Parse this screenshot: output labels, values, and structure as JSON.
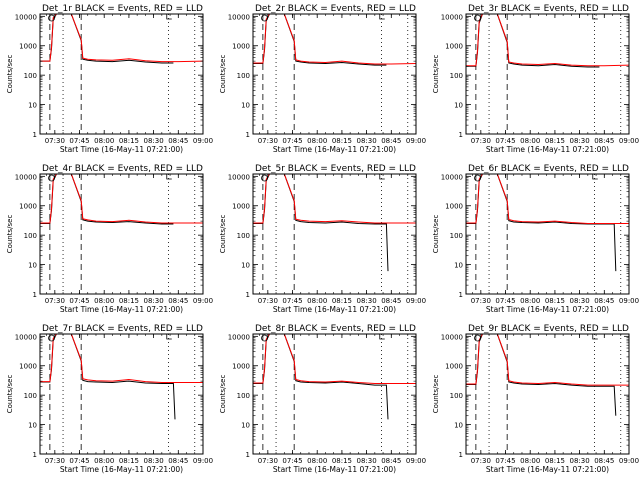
{
  "figure": {
    "colors": {
      "events": "#000000",
      "lld": "#ff0000",
      "axis": "#000000",
      "background": "#ffffff"
    },
    "ylabel": "Counts/sec",
    "xlabel": "Start Time (16-May-11 07:21:00)",
    "xticks": [
      "07:30",
      "07:45",
      "08:00",
      "08:15",
      "08:30",
      "08:45",
      "09:00"
    ],
    "yticks": [
      "1",
      "10",
      "100",
      "1000",
      "10000"
    ]
  },
  "chart_data": [
    {
      "type": "line",
      "title": "Det_1r  BLACK = Events, RED = LLD",
      "xlabel": "Start Time (16-May-11 07:21:00)",
      "ylabel": "Counts/sec",
      "xlim": [
        "07:21",
        "09:00"
      ],
      "ylim": [
        1,
        12000
      ],
      "yscale": "log",
      "ytick_labels": [
        "1",
        "10",
        "100",
        "1000",
        "10000"
      ],
      "xtick_labels": [
        "07:30",
        "07:45",
        "08:00",
        "08:15",
        "08:30",
        "08:45",
        "09:00"
      ],
      "series": [
        {
          "name": "Events",
          "color": "#000000",
          "x": [
            "07:21",
            "07:27",
            "07:28",
            "07:29",
            "07:31",
            "07:38",
            "07:40",
            "07:46",
            "07:47",
            "07:50",
            "07:55",
            "08:05",
            "08:15",
            "08:25",
            "08:35",
            "08:42"
          ],
          "values": [
            300,
            300,
            800,
            8000,
            12000,
            12000,
            12000,
            1500,
            350,
            320,
            300,
            290,
            320,
            280,
            260,
            260
          ]
        },
        {
          "name": "LLD",
          "color": "#ff0000",
          "x": [
            "07:21",
            "07:27",
            "07:28",
            "07:29",
            "07:31",
            "07:38",
            "07:40",
            "07:46",
            "07:47",
            "07:50",
            "07:55",
            "08:05",
            "08:15",
            "08:25",
            "08:35",
            "08:45",
            "09:00"
          ],
          "values": [
            300,
            300,
            900,
            9000,
            12000,
            12000,
            12000,
            1600,
            380,
            350,
            330,
            320,
            360,
            310,
            290,
            290,
            300
          ]
        }
      ]
    },
    {
      "type": "line",
      "title": "Det_2r  BLACK = Events, RED = LLD",
      "xlabel": "Start Time (16-May-11 07:21:00)",
      "ylabel": "Counts/sec",
      "xlim": [
        "07:21",
        "09:00"
      ],
      "ylim": [
        1,
        12000
      ],
      "yscale": "log",
      "ytick_labels": [
        "1",
        "10",
        "100",
        "1000",
        "10000"
      ],
      "xtick_labels": [
        "07:30",
        "07:45",
        "08:00",
        "08:15",
        "08:30",
        "08:45",
        "09:00"
      ],
      "series": [
        {
          "name": "Events",
          "color": "#000000",
          "x": [
            "07:21",
            "07:27",
            "07:28",
            "07:29",
            "07:31",
            "07:38",
            "07:40",
            "07:46",
            "07:47",
            "07:50",
            "07:55",
            "08:05",
            "08:15",
            "08:25",
            "08:35",
            "08:42"
          ],
          "values": [
            250,
            250,
            700,
            7000,
            12000,
            12000,
            12000,
            1400,
            300,
            280,
            260,
            250,
            270,
            240,
            220,
            220
          ]
        },
        {
          "name": "LLD",
          "color": "#ff0000",
          "x": [
            "07:21",
            "07:27",
            "07:28",
            "07:29",
            "07:31",
            "07:38",
            "07:40",
            "07:46",
            "07:47",
            "07:50",
            "07:55",
            "08:05",
            "08:15",
            "08:25",
            "08:35",
            "08:45",
            "09:00"
          ],
          "values": [
            260,
            260,
            800,
            8000,
            12000,
            12000,
            12000,
            1500,
            330,
            300,
            280,
            270,
            300,
            260,
            240,
            240,
            250
          ]
        }
      ]
    },
    {
      "type": "line",
      "title": "Det_3r  BLACK = Events, RED = LLD",
      "xlabel": "Start Time (16-May-11 07:21:00)",
      "ylabel": "Counts/sec",
      "xlim": [
        "07:21",
        "09:00"
      ],
      "ylim": [
        1,
        12000
      ],
      "yscale": "log",
      "ytick_labels": [
        "1",
        "10",
        "100",
        "1000",
        "10000"
      ],
      "xtick_labels": [
        "07:30",
        "07:45",
        "08:00",
        "08:15",
        "08:30",
        "08:45",
        "09:00"
      ],
      "series": [
        {
          "name": "Events",
          "color": "#000000",
          "x": [
            "07:21",
            "07:27",
            "07:28",
            "07:29",
            "07:31",
            "07:38",
            "07:40",
            "07:46",
            "07:47",
            "07:50",
            "07:55",
            "08:05",
            "08:15",
            "08:25",
            "08:35",
            "08:42"
          ],
          "values": [
            200,
            200,
            600,
            6000,
            12000,
            12000,
            12000,
            1300,
            260,
            240,
            220,
            210,
            230,
            200,
            190,
            190
          ]
        },
        {
          "name": "LLD",
          "color": "#ff0000",
          "x": [
            "07:21",
            "07:27",
            "07:28",
            "07:29",
            "07:31",
            "07:38",
            "07:40",
            "07:46",
            "07:47",
            "07:50",
            "07:55",
            "08:05",
            "08:15",
            "08:25",
            "08:35",
            "08:45",
            "09:00"
          ],
          "values": [
            210,
            210,
            700,
            7000,
            12000,
            12000,
            12000,
            1400,
            280,
            260,
            240,
            230,
            250,
            220,
            210,
            210,
            220
          ]
        }
      ]
    },
    {
      "type": "line",
      "title": "Det_4r  BLACK = Events, RED = LLD",
      "xlabel": "Start Time (16-May-11 07:21:00)",
      "ylabel": "Counts/sec",
      "xlim": [
        "07:21",
        "09:00"
      ],
      "ylim": [
        1,
        12000
      ],
      "yscale": "log",
      "ytick_labels": [
        "1",
        "10",
        "100",
        "1000",
        "10000"
      ],
      "xtick_labels": [
        "07:30",
        "07:45",
        "08:00",
        "08:15",
        "08:30",
        "08:45",
        "09:00"
      ],
      "series": [
        {
          "name": "Events",
          "color": "#000000",
          "x": [
            "07:21",
            "07:27",
            "07:28",
            "07:29",
            "07:31",
            "07:38",
            "07:40",
            "07:46",
            "07:47",
            "07:50",
            "07:55",
            "08:05",
            "08:15",
            "08:25",
            "08:35",
            "08:42"
          ],
          "values": [
            250,
            250,
            700,
            7000,
            12000,
            12000,
            12000,
            1400,
            330,
            300,
            280,
            270,
            290,
            260,
            240,
            240
          ]
        },
        {
          "name": "LLD",
          "color": "#ff0000",
          "x": [
            "07:21",
            "07:27",
            "07:28",
            "07:29",
            "07:31",
            "07:38",
            "07:40",
            "07:46",
            "07:47",
            "07:50",
            "07:55",
            "08:05",
            "08:15",
            "08:25",
            "08:35",
            "08:45",
            "09:00"
          ],
          "values": [
            260,
            260,
            800,
            8000,
            12000,
            12000,
            12000,
            1500,
            360,
            330,
            300,
            290,
            320,
            280,
            260,
            260,
            260
          ]
        }
      ]
    },
    {
      "type": "line",
      "title": "Det_5r  BLACK = Events, RED = LLD",
      "xlabel": "Start Time (16-May-11 07:21:00)",
      "ylabel": "Counts/sec",
      "xlim": [
        "07:21",
        "09:00"
      ],
      "ylim": [
        1,
        12000
      ],
      "yscale": "log",
      "ytick_labels": [
        "1",
        "10",
        "100",
        "1000",
        "10000"
      ],
      "xtick_labels": [
        "07:30",
        "07:45",
        "08:00",
        "08:15",
        "08:30",
        "08:45",
        "09:00"
      ],
      "series": [
        {
          "name": "Events",
          "color": "#000000",
          "x": [
            "07:21",
            "07:27",
            "07:28",
            "07:29",
            "07:31",
            "07:38",
            "07:40",
            "07:46",
            "07:47",
            "07:50",
            "07:55",
            "08:05",
            "08:15",
            "08:25",
            "08:35",
            "08:42",
            "08:43"
          ],
          "values": [
            250,
            250,
            700,
            7000,
            12000,
            12000,
            12000,
            1400,
            320,
            290,
            270,
            260,
            280,
            250,
            240,
            240,
            6
          ]
        },
        {
          "name": "LLD",
          "color": "#ff0000",
          "x": [
            "07:21",
            "07:27",
            "07:28",
            "07:29",
            "07:31",
            "07:38",
            "07:40",
            "07:46",
            "07:47",
            "07:50",
            "07:55",
            "08:05",
            "08:15",
            "08:25",
            "08:35",
            "08:45",
            "09:00"
          ],
          "values": [
            260,
            260,
            800,
            8000,
            12000,
            12000,
            12000,
            1500,
            350,
            320,
            300,
            290,
            310,
            280,
            260,
            260,
            260
          ]
        }
      ]
    },
    {
      "type": "line",
      "title": "Det_6r  BLACK = Events, RED = LLD",
      "xlabel": "Start Time (16-May-11 07:21:00)",
      "ylabel": "Counts/sec",
      "xlim": [
        "07:21",
        "09:00"
      ],
      "ylim": [
        1,
        12000
      ],
      "yscale": "log",
      "ytick_labels": [
        "1",
        "10",
        "100",
        "1000",
        "10000"
      ],
      "xtick_labels": [
        "07:30",
        "07:45",
        "08:00",
        "08:15",
        "08:30",
        "08:45",
        "09:00"
      ],
      "series": [
        {
          "name": "Events",
          "color": "#000000",
          "x": [
            "07:21",
            "07:27",
            "07:28",
            "07:29",
            "07:31",
            "07:38",
            "07:40",
            "07:46",
            "07:47",
            "07:50",
            "07:55",
            "08:05",
            "08:15",
            "08:25",
            "08:35",
            "08:51",
            "08:52"
          ],
          "values": [
            250,
            250,
            700,
            7000,
            12000,
            12000,
            12000,
            1400,
            310,
            280,
            270,
            260,
            280,
            250,
            240,
            240,
            6
          ]
        },
        {
          "name": "LLD",
          "color": "#ff0000",
          "x": [
            "07:21",
            "07:27",
            "07:28",
            "07:29",
            "07:31",
            "07:38",
            "07:40",
            "07:46",
            "07:47",
            "07:50",
            "07:55",
            "08:05",
            "08:15",
            "08:25",
            "08:35",
            "08:45",
            "09:00"
          ],
          "values": [
            260,
            260,
            800,
            8000,
            12000,
            12000,
            12000,
            1500,
            340,
            310,
            290,
            280,
            300,
            270,
            250,
            250,
            250
          ]
        }
      ]
    },
    {
      "type": "line",
      "title": "Det_7r  BLACK = Events, RED = LLD",
      "xlabel": "Start Time (16-May-11 07:21:00)",
      "ylabel": "Counts/sec",
      "xlim": [
        "07:21",
        "09:00"
      ],
      "ylim": [
        1,
        12000
      ],
      "yscale": "log",
      "ytick_labels": [
        "1",
        "10",
        "100",
        "1000",
        "10000"
      ],
      "xtick_labels": [
        "07:30",
        "07:45",
        "08:00",
        "08:15",
        "08:30",
        "08:45",
        "09:00"
      ],
      "series": [
        {
          "name": "Events",
          "color": "#000000",
          "x": [
            "07:21",
            "07:27",
            "07:28",
            "07:29",
            "07:31",
            "07:38",
            "07:40",
            "07:46",
            "07:47",
            "07:50",
            "07:55",
            "08:05",
            "08:15",
            "08:25",
            "08:35",
            "08:42",
            "08:43"
          ],
          "values": [
            280,
            280,
            750,
            7500,
            12000,
            12000,
            12000,
            1450,
            320,
            290,
            280,
            270,
            300,
            260,
            250,
            250,
            15
          ]
        },
        {
          "name": "LLD",
          "color": "#ff0000",
          "x": [
            "07:21",
            "07:27",
            "07:28",
            "07:29",
            "07:31",
            "07:38",
            "07:40",
            "07:46",
            "07:47",
            "07:50",
            "07:55",
            "08:05",
            "08:15",
            "08:25",
            "08:35",
            "08:45",
            "09:00"
          ],
          "values": [
            290,
            290,
            850,
            8500,
            12000,
            12000,
            12000,
            1550,
            360,
            330,
            310,
            300,
            340,
            290,
            270,
            270,
            270
          ]
        }
      ]
    },
    {
      "type": "line",
      "title": "Det_8r  BLACK = Events, RED = LLD",
      "xlabel": "Start Time (16-May-11 07:21:00)",
      "ylabel": "Counts/sec",
      "xlim": [
        "07:21",
        "09:00"
      ],
      "ylim": [
        1,
        12000
      ],
      "yscale": "log",
      "ytick_labels": [
        "1",
        "10",
        "100",
        "1000",
        "10000"
      ],
      "xtick_labels": [
        "07:30",
        "07:45",
        "08:00",
        "08:15",
        "08:30",
        "08:45",
        "09:00"
      ],
      "series": [
        {
          "name": "Events",
          "color": "#000000",
          "x": [
            "07:21",
            "07:27",
            "07:28",
            "07:29",
            "07:31",
            "07:38",
            "07:40",
            "07:46",
            "07:47",
            "07:50",
            "07:55",
            "08:05",
            "08:15",
            "08:25",
            "08:35",
            "08:42",
            "08:43"
          ],
          "values": [
            250,
            250,
            700,
            7000,
            12000,
            12000,
            12000,
            1400,
            310,
            280,
            270,
            260,
            280,
            250,
            220,
            220,
            15
          ]
        },
        {
          "name": "LLD",
          "color": "#ff0000",
          "x": [
            "07:21",
            "07:27",
            "07:28",
            "07:29",
            "07:31",
            "07:38",
            "07:40",
            "07:46",
            "07:47",
            "07:50",
            "07:55",
            "08:05",
            "08:15",
            "08:25",
            "08:35",
            "08:45",
            "09:00"
          ],
          "values": [
            260,
            260,
            800,
            8000,
            12000,
            12000,
            12000,
            1500,
            340,
            310,
            290,
            280,
            300,
            270,
            250,
            250,
            250
          ]
        }
      ]
    },
    {
      "type": "line",
      "title": "Det_9r  BLACK = Events, RED = LLD",
      "xlabel": "Start Time (16-May-11 07:21:00)",
      "ylabel": "Counts/sec",
      "xlim": [
        "07:21",
        "09:00"
      ],
      "ylim": [
        1,
        12000
      ],
      "yscale": "log",
      "ytick_labels": [
        "1",
        "10",
        "100",
        "1000",
        "10000"
      ],
      "xtick_labels": [
        "07:30",
        "07:45",
        "08:00",
        "08:15",
        "08:30",
        "08:45",
        "09:00"
      ],
      "series": [
        {
          "name": "Events",
          "color": "#000000",
          "x": [
            "07:21",
            "07:27",
            "07:28",
            "07:29",
            "07:31",
            "07:38",
            "07:40",
            "07:46",
            "07:47",
            "07:50",
            "07:55",
            "08:05",
            "08:15",
            "08:25",
            "08:35",
            "08:51",
            "08:52"
          ],
          "values": [
            230,
            230,
            650,
            6500,
            12000,
            12000,
            12000,
            1350,
            280,
            260,
            240,
            230,
            250,
            220,
            200,
            200,
            20
          ]
        },
        {
          "name": "LLD",
          "color": "#ff0000",
          "x": [
            "07:21",
            "07:27",
            "07:28",
            "07:29",
            "07:31",
            "07:38",
            "07:40",
            "07:46",
            "07:47",
            "07:50",
            "07:55",
            "08:05",
            "08:15",
            "08:25",
            "08:35",
            "08:45",
            "09:00"
          ],
          "values": [
            240,
            240,
            750,
            7500,
            12000,
            12000,
            12000,
            1450,
            310,
            280,
            260,
            250,
            270,
            240,
            220,
            220,
            220
          ]
        }
      ]
    }
  ]
}
